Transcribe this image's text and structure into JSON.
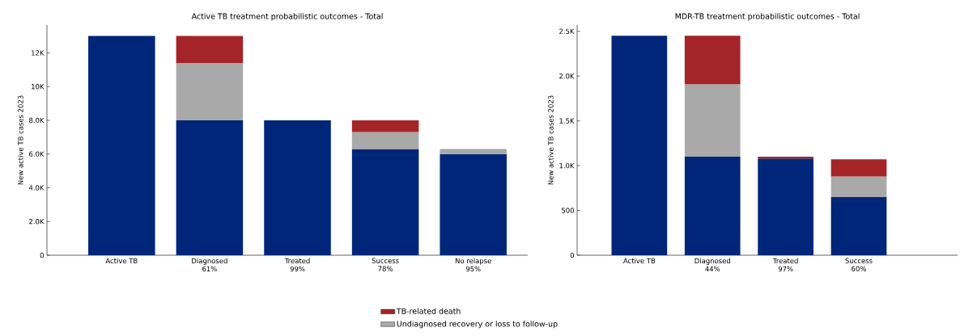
{
  "chart_data": [
    {
      "type": "bar",
      "title": "Active TB treatment probabilistic outcomes - Total",
      "ylabel": "New active TB cases 2023",
      "stacked": true,
      "categories": [
        "Active TB",
        "Diagnosed\n61%",
        "Treated\n99%",
        "Success\n78%",
        "No relapse\n95%"
      ],
      "series": [
        {
          "color": "#00267a",
          "values": [
            13000,
            8000,
            8000,
            6300,
            6000
          ]
        },
        {
          "name": "Undiagnosed recovery or loss to follow-up",
          "color": "#a9a9a9",
          "values": [
            null,
            3400,
            null,
            1000,
            300
          ]
        },
        {
          "name": "TB-related death",
          "color": "#a52427",
          "values": [
            null,
            1600,
            null,
            700,
            null
          ]
        }
      ],
      "ylim": [
        0,
        13650
      ],
      "yticks": [
        0,
        {
          "value": 2000,
          "label": "2.0K"
        },
        {
          "value": 4000,
          "label": "4.0K"
        },
        {
          "value": 6000,
          "label": "6.0K"
        },
        {
          "value": 8000,
          "label": "8.0K"
        },
        {
          "value": 10000,
          "label": "10K"
        },
        {
          "value": 12000,
          "label": "12K"
        }
      ],
      "grid": false,
      "legend": "bottom"
    },
    {
      "type": "bar",
      "title": "MDR-TB treatment probabilistic outcomes - Total",
      "ylabel": "New active TB cases 2023",
      "stacked": true,
      "categories": [
        "Active TB",
        "Diagnosed\n44%",
        "Treated\n97%",
        "Success\n60%"
      ],
      "series": [
        {
          "color": "#00267a",
          "values": [
            2450,
            1100,
            1080,
            650
          ]
        },
        {
          "color": "#a9a9a9",
          "values": [
            null,
            810,
            null,
            230
          ]
        },
        {
          "color": "#a52427",
          "values": [
            null,
            540,
            20,
            190
          ]
        }
      ],
      "ylim": [
        0,
        2570
      ],
      "yticks": [
        0,
        500,
        {
          "value": 1000,
          "label": "1.0K"
        },
        {
          "value": 1500,
          "label": "1.5K"
        },
        {
          "value": 2000,
          "label": "2.0K"
        },
        {
          "value": 2500,
          "label": "2.5K"
        }
      ],
      "grid": false,
      "legend": false
    }
  ]
}
